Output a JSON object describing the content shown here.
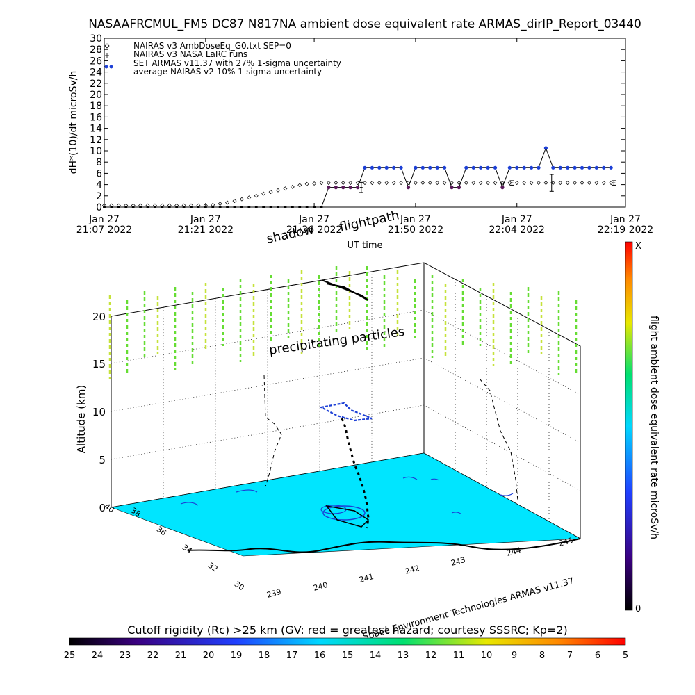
{
  "page_title": "NASAAFRCMUL_FM5 DC87 N817NA ambient dose equivalent rate ARMAS_dirIP_Report_03440",
  "chart_data": [
    {
      "type": "line",
      "title": "NASAAFRCMUL_FM5 DC87 N817NA ambient dose equivalent rate ARMAS_dirIP_Report_03440",
      "xlabel": "UT time",
      "ylabel": "dH*(10)/dt microSv/h",
      "ylim": [
        0,
        30
      ],
      "xlim_minutes": [
        0,
        72
      ],
      "yticks": [
        "0",
        "2",
        "4",
        "6",
        "8",
        "10",
        "12",
        "14",
        "16",
        "18",
        "20",
        "22",
        "24",
        "26",
        "28",
        "30"
      ],
      "xticks": [
        {
          "minute": 0,
          "line1": "Jan 27",
          "line2": "21:07 2022"
        },
        {
          "minute": 14,
          "line1": "Jan 27",
          "line2": "21:21 2022"
        },
        {
          "minute": 29,
          "line1": "Jan 27",
          "line2": "21:36 2022"
        },
        {
          "minute": 43,
          "line1": "Jan 27",
          "line2": "21:50 2022"
        },
        {
          "minute": 57,
          "line1": "Jan 27",
          "line2": "22:04 2022"
        },
        {
          "minute": 72,
          "line1": "Jan 27",
          "line2": "22:19 2022"
        }
      ],
      "legend": {
        "placement": "top-left",
        "entries": [
          "NAIRAS v3 AmbDoseEq_G0.txt SEP=0",
          "NAIRAS v3 NASA LaRC runs",
          "SET ARMAS v11.37 with 27% 1-sigma uncertainty",
          "average NAIRAS v2 10% 1-sigma uncertainty"
        ]
      },
      "series": [
        {
          "name": "NAIRAS v3 AmbDoseEq_G0.txt SEP=0",
          "marker": "diamond",
          "x": [
            0,
            1,
            2,
            3,
            4,
            5,
            6,
            7,
            8,
            9,
            10,
            11,
            12,
            13,
            14,
            15,
            16,
            17,
            18,
            19,
            20,
            21,
            22,
            23,
            24,
            25,
            26,
            27,
            28,
            29,
            30,
            31,
            32,
            33,
            34,
            35,
            36,
            37,
            38,
            39,
            40,
            41,
            42,
            43,
            44,
            45,
            46,
            47,
            48,
            49,
            50,
            51,
            52,
            53,
            54,
            55,
            56,
            57,
            58,
            59,
            60,
            61,
            62,
            63,
            64,
            65,
            66,
            67,
            68,
            69,
            70
          ],
          "y": [
            0.3,
            0.3,
            0.3,
            0.3,
            0.3,
            0.3,
            0.3,
            0.3,
            0.3,
            0.3,
            0.3,
            0.3,
            0.3,
            0.3,
            0.3,
            0.4,
            0.6,
            0.8,
            1.1,
            1.4,
            1.7,
            2.0,
            2.4,
            2.7,
            3.0,
            3.3,
            3.6,
            3.9,
            4.1,
            4.2,
            4.3,
            4.3,
            4.3,
            4.3,
            4.3,
            4.3,
            4.3,
            4.3,
            4.3,
            4.3,
            4.3,
            4.3,
            4.3,
            4.3,
            4.3,
            4.3,
            4.3,
            4.3,
            4.3,
            4.3,
            4.3,
            4.3,
            4.3,
            4.3,
            4.3,
            4.3,
            4.3,
            4.3,
            4.3,
            4.3,
            4.3,
            4.3,
            4.3,
            4.3,
            4.3,
            4.3,
            4.3,
            4.3,
            4.3,
            4.3,
            4.3
          ]
        },
        {
          "name": "NAIRAS v3 NASA LaRC runs",
          "marker": "errorbar",
          "points": [
            {
              "x": 35.5,
              "y": 3.5,
              "err": 0.9
            },
            {
              "x": 56.3,
              "y": 4.3,
              "err": 0.4
            },
            {
              "x": 61.8,
              "y": 4.3,
              "err": 1.5
            },
            {
              "x": 70.4,
              "y": 4.3,
              "err": 0.4
            }
          ]
        },
        {
          "name": "SET ARMAS v11.37 with 27% 1-sigma uncertainty",
          "marker": "dot",
          "x": [
            0,
            1,
            2,
            3,
            4,
            5,
            6,
            7,
            8,
            9,
            10,
            11,
            12,
            13,
            14,
            15,
            16,
            17,
            18,
            19,
            20,
            21,
            22,
            23,
            24,
            25,
            26,
            27,
            28,
            29,
            30,
            31,
            32,
            33,
            34,
            35,
            36,
            37,
            38,
            39,
            40,
            41,
            42,
            43,
            44,
            45,
            46,
            47,
            48,
            49,
            50,
            51,
            52,
            53,
            54,
            55,
            56,
            57,
            58,
            59,
            60,
            61,
            62,
            63,
            64,
            65,
            66,
            67,
            68,
            69,
            70
          ],
          "y": [
            0,
            0,
            0,
            0,
            0,
            0,
            0,
            0,
            0,
            0,
            0,
            0,
            0,
            0,
            0,
            0,
            0,
            0,
            0,
            0,
            0,
            0,
            0,
            0,
            0,
            0,
            0,
            0,
            0,
            0,
            0,
            3.5,
            3.5,
            3.5,
            3.5,
            3.5,
            7,
            7,
            7,
            7,
            7,
            7,
            3.5,
            7,
            7,
            7,
            7,
            7,
            3.5,
            3.5,
            7,
            7,
            7,
            7,
            7,
            3.5,
            7,
            7,
            7,
            7,
            7,
            10.5,
            7,
            7,
            7,
            7,
            7,
            7,
            7,
            7,
            7
          ]
        }
      ]
    },
    {
      "type": "scatter",
      "subtype": "3d-flightpath",
      "zlabel": "Altitude (km)",
      "zticks": [
        "0",
        "5",
        "10",
        "15",
        "20"
      ],
      "lat_ticks": [
        "30",
        "32",
        "34",
        "36",
        "38",
        "40"
      ],
      "lon_ticks": [
        "239",
        "240",
        "241",
        "242",
        "243",
        "244",
        "245"
      ],
      "annotations": [
        "shadow",
        "flightpath",
        "precipitating particles"
      ],
      "credit": "Space Environment Technologies ARMAS v11.37",
      "colorbar": {
        "label": "flight ambient dose equivalent rate microSv/h",
        "top_label": "X",
        "bottom_label": "0"
      }
    },
    {
      "type": "heatmap",
      "subtype": "colorbar",
      "title": "Cutoff rigidity (Rc) >25 km (GV: red = greatest hazard; courtesy SSSRC; Kp=2)",
      "ticks": [
        "25",
        "24",
        "23",
        "22",
        "21",
        "20",
        "19",
        "18",
        "17",
        "16",
        "15",
        "14",
        "13",
        "12",
        "11",
        "10",
        "9",
        "8",
        "7",
        "6",
        "5"
      ]
    }
  ],
  "colors": {
    "armas_dot": "#1c3fd6",
    "armas_dot_low": "#5a1a5a",
    "ground_cyan": "#00e5ff",
    "particles": "#66dd33",
    "colorbar_stops": [
      "#000000",
      "#3a0080",
      "#2040ff",
      "#00d8ff",
      "#00e070",
      "#e8e800",
      "#ff8800",
      "#ff0000"
    ]
  }
}
